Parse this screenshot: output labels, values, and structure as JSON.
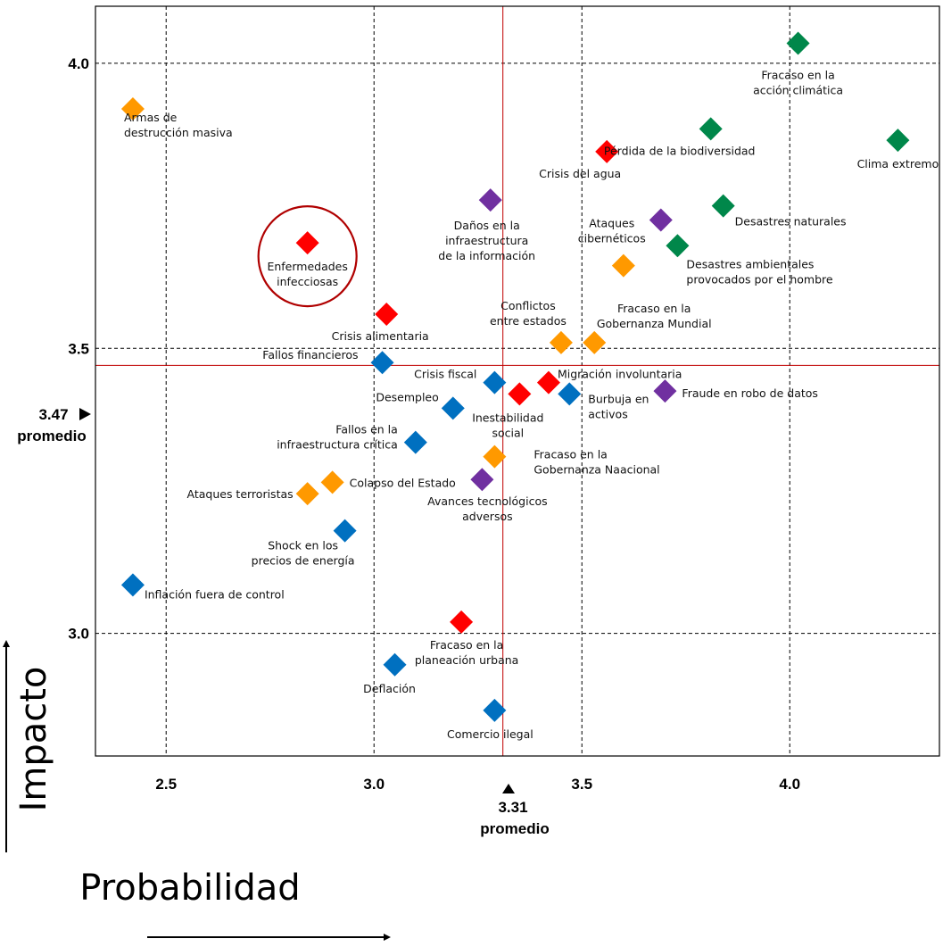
{
  "chart_data": {
    "type": "scatter",
    "xlabel": "Probabilidad",
    "ylabel": "Impacto",
    "xlim": [
      2.33,
      4.36
    ],
    "ylim": [
      2.785,
      4.1
    ],
    "x_ticks": [
      {
        "value": 2.5,
        "label": "2.5"
      },
      {
        "value": 3.0,
        "label": "3.0"
      },
      {
        "value": 3.5,
        "label": "3.5"
      },
      {
        "value": 4.0,
        "label": "4.0"
      }
    ],
    "y_ticks": [
      {
        "value": 3.0,
        "label": "3.0"
      },
      {
        "value": 3.5,
        "label": "3.5"
      },
      {
        "value": 4.0,
        "label": "4.0"
      }
    ],
    "grid": true,
    "avg_x": {
      "value": 3.31,
      "value_label": "3.31",
      "caption": "promedio"
    },
    "avg_y": {
      "value": 3.47,
      "value_label": "3.47",
      "caption": "promedio"
    },
    "colors": {
      "Económicos": "#0070c0",
      "Ambientales": "#00874a",
      "Geopolíticos": "#ff9900",
      "Sociales": "#ff0000",
      "Tecnológicos": "#7030a0",
      "reference_line": "#c00000",
      "highlight_circle": "#b00000"
    },
    "highlight": "Enfermedades infecciosas",
    "points": [
      {
        "x": 4.02,
        "y": 4.035,
        "category": "Ambientales",
        "label": [
          "Fracaso en la",
          "acción climática"
        ],
        "anchor": "middle",
        "dx": 0,
        "dy": 40
      },
      {
        "x": 2.42,
        "y": 3.92,
        "category": "Geopolíticos",
        "label": [
          "Armas de",
          "destrucción masiva"
        ],
        "anchor": "start",
        "dx": -10,
        "dy": 14
      },
      {
        "x": 3.81,
        "y": 3.885,
        "category": "Ambientales",
        "label": [
          "Pérdida de la biodiversidad"
        ],
        "anchor": "middle",
        "dx": -35,
        "dy": 29
      },
      {
        "x": 4.26,
        "y": 3.865,
        "category": "Ambientales",
        "label": [
          "Clima extremo"
        ],
        "anchor": "middle",
        "dx": 0,
        "dy": 31
      },
      {
        "x": 3.56,
        "y": 3.845,
        "category": "Sociales",
        "label": [
          "Crisis del agua"
        ],
        "anchor": "middle",
        "dx": -30,
        "dy": 29
      },
      {
        "x": 3.28,
        "y": 3.76,
        "category": "Tecnológicos",
        "label": [
          "Daños en la",
          "infraestructura",
          "de la información"
        ],
        "anchor": "middle",
        "dx": -4,
        "dy": 33
      },
      {
        "x": 3.84,
        "y": 3.75,
        "category": "Ambientales",
        "label": [
          "Desastres naturales"
        ],
        "anchor": "start",
        "dx": 13,
        "dy": 22
      },
      {
        "x": 3.69,
        "y": 3.725,
        "category": "Tecnológicos",
        "label": [
          "Ataques",
          "cibernéticos"
        ],
        "anchor": "middle",
        "dx": -55,
        "dy": 8
      },
      {
        "x": 2.84,
        "y": 3.685,
        "category": "Sociales",
        "label": [
          "Enfermedades",
          "infecciosas"
        ],
        "anchor": "middle",
        "dx": 0,
        "dy": 31
      },
      {
        "x": 3.73,
        "y": 3.68,
        "category": "Ambientales",
        "label": [
          "Desastres ambientales",
          "provocados por el hombre"
        ],
        "anchor": "start",
        "dx": 10,
        "dy": 25
      },
      {
        "x": 3.6,
        "y": 3.645,
        "category": "Geopolíticos",
        "label": [],
        "anchor": "middle",
        "dx": 0,
        "dy": 0
      },
      {
        "x": 3.03,
        "y": 3.56,
        "category": "Sociales",
        "label": [
          "Crisis alimentaria"
        ],
        "anchor": "middle",
        "dx": -7,
        "dy": 29
      },
      {
        "x": 3.45,
        "y": 3.51,
        "category": "Geopolíticos",
        "label": [
          "Conflictos",
          "entre estados"
        ],
        "anchor": "middle",
        "dx": -37,
        "dy": -37
      },
      {
        "x": 3.53,
        "y": 3.51,
        "category": "Geopolíticos",
        "label": [
          "Fracaso en la",
          "Gobernanza Mundial"
        ],
        "anchor": "middle",
        "dx": 67,
        "dy": -34
      },
      {
        "x": 3.02,
        "y": 3.475,
        "category": "Económicos",
        "label": [
          "Fallos financieros"
        ],
        "anchor": "end",
        "dx": -27,
        "dy": -4
      },
      {
        "x": 3.29,
        "y": 3.44,
        "category": "Económicos",
        "label": [
          "Crisis fiscal"
        ],
        "anchor": "end",
        "dx": -20,
        "dy": -5
      },
      {
        "x": 3.42,
        "y": 3.44,
        "category": "Sociales",
        "label": [
          "Migración involuntaria"
        ],
        "anchor": "start",
        "dx": 10,
        "dy": -5
      },
      {
        "x": 3.35,
        "y": 3.42,
        "category": "Sociales",
        "label": [
          "Inestabilidad",
          "social"
        ],
        "anchor": "middle",
        "dx": -13,
        "dy": 31
      },
      {
        "x": 3.47,
        "y": 3.42,
        "category": "Económicos",
        "label": [
          "Burbuja en",
          "activos"
        ],
        "anchor": "start",
        "dx": 21,
        "dy": 10
      },
      {
        "x": 3.7,
        "y": 3.425,
        "category": "Tecnológicos",
        "label": [
          "Fraude en robo de datos"
        ],
        "anchor": "start",
        "dx": 19,
        "dy": 7
      },
      {
        "x": 3.19,
        "y": 3.395,
        "category": "Económicos",
        "label": [
          "Desempleo"
        ],
        "anchor": "end",
        "dx": -16,
        "dy": -8
      },
      {
        "x": 3.1,
        "y": 3.335,
        "category": "Económicos",
        "label": [
          "Fallos en la",
          "infraestructura crítica"
        ],
        "anchor": "end",
        "dx": -20,
        "dy": -10
      },
      {
        "x": 3.29,
        "y": 3.31,
        "category": "Geopolíticos",
        "label": [
          "Fracaso en la",
          "Gobernanza Naacional"
        ],
        "anchor": "start",
        "dx": 44,
        "dy": 2
      },
      {
        "x": 2.9,
        "y": 3.265,
        "category": "Geopolíticos",
        "label": [
          "Colapso del Estado"
        ],
        "anchor": "start",
        "dx": 19,
        "dy": 5
      },
      {
        "x": 3.26,
        "y": 3.27,
        "category": "Tecnológicos",
        "label": [
          "Avances tecnológicos",
          "adversos"
        ],
        "anchor": "middle",
        "dx": 6,
        "dy": 29
      },
      {
        "x": 2.84,
        "y": 3.245,
        "category": "Geopolíticos",
        "label": [
          "Ataques terroristas"
        ],
        "anchor": "end",
        "dx": -16,
        "dy": 5
      },
      {
        "x": 2.93,
        "y": 3.18,
        "category": "Económicos",
        "label": [
          "Shock en los",
          "precios de energía"
        ],
        "anchor": "middle",
        "dx": -47,
        "dy": 21
      },
      {
        "x": 2.42,
        "y": 3.085,
        "category": "Económicos",
        "label": [
          "Inflación fuera de control"
        ],
        "anchor": "start",
        "dx": 13,
        "dy": 15
      },
      {
        "x": 3.21,
        "y": 3.02,
        "category": "Sociales",
        "label": [
          "Fracaso en la",
          "planeación urbana"
        ],
        "anchor": "middle",
        "dx": 6,
        "dy": 30
      },
      {
        "x": 3.05,
        "y": 2.945,
        "category": "Económicos",
        "label": [
          "Deflación"
        ],
        "anchor": "middle",
        "dx": -6,
        "dy": 31
      },
      {
        "x": 3.29,
        "y": 2.865,
        "category": "Económicos",
        "label": [
          "Comercio ilegal"
        ],
        "anchor": "middle",
        "dx": -5,
        "dy": 31
      }
    ]
  }
}
